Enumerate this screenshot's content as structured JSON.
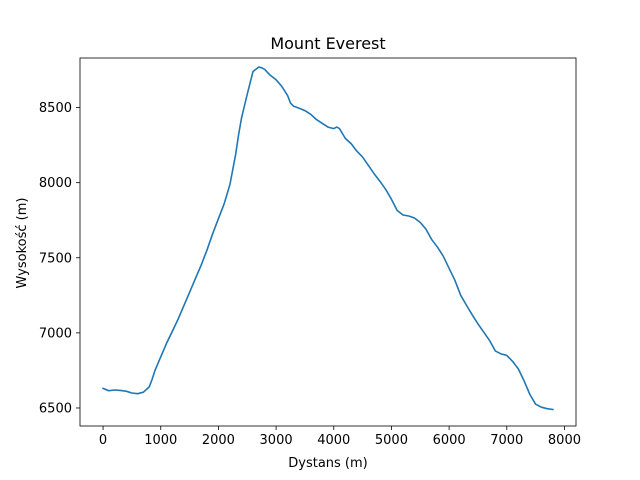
{
  "chart_data": {
    "type": "line",
    "title": "Mount Everest",
    "xlabel": "Dystans (m)",
    "ylabel": "Wysokość (m)",
    "xlim": [
      -400,
      8200
    ],
    "ylim": [
      6380,
      8830
    ],
    "xticks": [
      0,
      1000,
      2000,
      3000,
      4000,
      5000,
      6000,
      7000,
      8000
    ],
    "yticks": [
      6500,
      7000,
      7500,
      8000,
      8500
    ],
    "grid": false,
    "legend": "none",
    "line_color": "#1f77b4",
    "series": [
      {
        "x": [
          0,
          100,
          200,
          300,
          400,
          500,
          600,
          700,
          800,
          850,
          900,
          1000,
          1100,
          1200,
          1300,
          1400,
          1500,
          1600,
          1700,
          1800,
          1900,
          2000,
          2100,
          2200,
          2300,
          2350,
          2400,
          2500,
          2600,
          2700,
          2750,
          2800,
          2850,
          2900,
          3000,
          3100,
          3200,
          3250,
          3300,
          3400,
          3500,
          3600,
          3700,
          3800,
          3900,
          4000,
          4050,
          4100,
          4200,
          4300,
          4400,
          4500,
          4600,
          4700,
          4800,
          4900,
          5000,
          5100,
          5200,
          5300,
          5400,
          5500,
          5600,
          5700,
          5800,
          5900,
          6000,
          6100,
          6200,
          6300,
          6400,
          6500,
          6600,
          6700,
          6800,
          6900,
          7000,
          7100,
          7200,
          7300,
          7400,
          7500,
          7600,
          7700,
          7800
        ],
        "y": [
          6630,
          6615,
          6620,
          6617,
          6612,
          6600,
          6595,
          6605,
          6640,
          6690,
          6750,
          6840,
          6930,
          7010,
          7090,
          7180,
          7270,
          7360,
          7450,
          7550,
          7660,
          7760,
          7860,
          7990,
          8190,
          8320,
          8430,
          8590,
          8740,
          8770,
          8765,
          8755,
          8735,
          8715,
          8685,
          8640,
          8580,
          8530,
          8510,
          8495,
          8480,
          8455,
          8420,
          8395,
          8370,
          8360,
          8370,
          8360,
          8295,
          8260,
          8210,
          8170,
          8115,
          8060,
          8010,
          7955,
          7890,
          7815,
          7785,
          7778,
          7765,
          7735,
          7690,
          7620,
          7570,
          7510,
          7430,
          7350,
          7250,
          7185,
          7120,
          7060,
          7005,
          6950,
          6880,
          6860,
          6850,
          6810,
          6760,
          6680,
          6590,
          6525,
          6505,
          6495,
          6490
        ]
      }
    ]
  }
}
